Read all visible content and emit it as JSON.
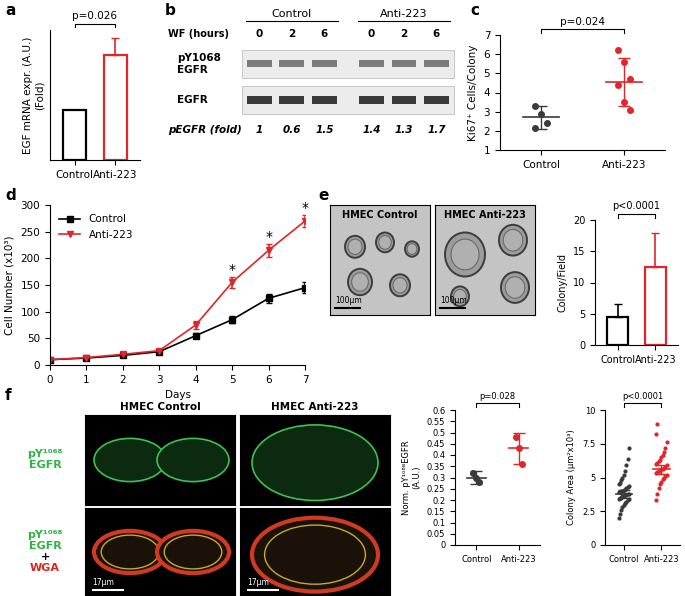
{
  "chart_data": [
    {
      "panel_label": "a",
      "type": "bar",
      "categories": [
        "Control",
        "Anti-223"
      ],
      "values": [
        1,
        2.1
      ],
      "errors": [
        null,
        0.35
      ],
      "colors": [
        "#000000",
        "#e0262b"
      ],
      "ylabel": "EGF mRNA expr. (A.U.)\n(Fold)",
      "ylim": [
        0,
        2.6
      ],
      "tick_labels": "x",
      "annotations": [
        {
          "text": "p=0.026",
          "between": [
            "Control",
            "Anti-223"
          ]
        }
      ]
    },
    {
      "panel_label": "c",
      "type": "dot",
      "categories": [
        "Control",
        "Anti-223"
      ],
      "points": [
        [
          3.3,
          2.9,
          2.4,
          2.15
        ],
        [
          6.2,
          5.6,
          4.7,
          4.4,
          3.5,
          3.1
        ]
      ],
      "means": [
        2.7,
        4.55
      ],
      "errors": [
        0.6,
        1.25
      ],
      "colors": [
        "#3a3a3a",
        "#e0262b"
      ],
      "ylabel": "Ki67⁺ Cells/Colony",
      "ylim": [
        1,
        7
      ],
      "yticks": [
        1,
        2,
        3,
        4,
        5,
        6,
        7
      ],
      "annotations": [
        {
          "text": "p=0.024",
          "between": [
            "Control",
            "Anti-223"
          ]
        }
      ]
    },
    {
      "panel_label": "d",
      "type": "line",
      "x": [
        0,
        1,
        2,
        3,
        4,
        5,
        6,
        7
      ],
      "series": [
        {
          "name": "Control",
          "color": "#000000",
          "marker": "square",
          "values": [
            10,
            13,
            18,
            25,
            55,
            85,
            125,
            145
          ],
          "errors": [
            1,
            1,
            2,
            2,
            5,
            6,
            8,
            10
          ]
        },
        {
          "name": "Anti-223",
          "color": "#e0262b",
          "marker": "triangle_down",
          "values": [
            10,
            14,
            20,
            27,
            75,
            155,
            215,
            270
          ],
          "errors": [
            1,
            1,
            2,
            2,
            8,
            10,
            12,
            12
          ]
        }
      ],
      "xlabel": "Days",
      "ylabel": "Cell Number (x10³)",
      "xlim": [
        0,
        7
      ],
      "xticks": [
        0,
        1,
        2,
        3,
        4,
        5,
        6,
        7
      ],
      "ylim": [
        0,
        300
      ],
      "yticks": [
        0,
        50,
        100,
        150,
        200,
        250,
        300
      ],
      "legend": "upper left",
      "annotations": [
        {
          "text": "*",
          "x": 5
        },
        {
          "text": "*",
          "x": 6
        },
        {
          "text": "*",
          "x": 7
        }
      ]
    },
    {
      "panel_label": "e",
      "type": "bar",
      "categories": [
        "Control",
        "Anti-223"
      ],
      "values": [
        4.5,
        12.5
      ],
      "errors": [
        2,
        5.5
      ],
      "colors": [
        "#000000",
        "#e0262b"
      ],
      "ylabel": "Colony/Field",
      "ylim": [
        0,
        20
      ],
      "yticks": [
        0,
        5,
        10,
        15,
        20
      ],
      "annotations": [
        {
          "text": "p<0.0001",
          "between": [
            "Control",
            "Anti-223"
          ]
        }
      ]
    },
    {
      "panel_label": "f",
      "type": "dot",
      "categories": [
        "Control",
        "Anti-223"
      ],
      "points": [
        [
          0.32,
          0.3,
          0.28
        ],
        [
          0.48,
          0.43,
          0.36
        ]
      ],
      "means": [
        0.3,
        0.43
      ],
      "errors": [
        0.03,
        0.07
      ],
      "colors": [
        "#3a3a3a",
        "#e0262b"
      ],
      "ylabel": "Norm. pY¹⁰⁶⁸EGFR\n(A.U.)",
      "ylim": [
        0,
        0.6
      ],
      "yticks": [
        0,
        0.05,
        0.1,
        0.15,
        0.2,
        0.25,
        0.3,
        0.35,
        0.4,
        0.45,
        0.5,
        0.55,
        0.6
      ],
      "annotations": [
        {
          "text": "p=0.028",
          "between": [
            "Control",
            "Anti-223"
          ]
        }
      ]
    },
    {
      "type": "dot",
      "categories": [
        "Control",
        "Anti-223"
      ],
      "points": [
        [
          2.0,
          2.3,
          2.6,
          2.8,
          3.0,
          3.1,
          3.2,
          3.3,
          3.4,
          3.4,
          3.5,
          3.5,
          3.6,
          3.6,
          3.7,
          3.7,
          3.8,
          3.8,
          3.9,
          3.9,
          4.0,
          4.0,
          4.1,
          4.1,
          4.2,
          4.3,
          4.4,
          4.5,
          4.6,
          4.8,
          5.0,
          5.2,
          5.5,
          5.9,
          6.4,
          7.2
        ],
        [
          3.3,
          3.8,
          4.2,
          4.5,
          4.7,
          4.9,
          5.0,
          5.1,
          5.2,
          5.3,
          5.4,
          5.5,
          5.5,
          5.6,
          5.6,
          5.7,
          5.8,
          5.9,
          6.0,
          6.1,
          6.2,
          6.3,
          6.5,
          6.7,
          6.9,
          7.2,
          7.6,
          8.2,
          9.0
        ]
      ],
      "means": [
        3.8,
        5.6
      ],
      "errors": [
        0.3,
        0.35
      ],
      "colors": [
        "#3a3a3a",
        "#e0262b"
      ],
      "ylabel": "Colony Area (μm²x10³)",
      "ylim": [
        0,
        10
      ],
      "yticks": [
        0,
        2.5,
        5,
        7.5,
        10
      ],
      "annotations": [
        {
          "text": "p<0.0001",
          "between": [
            "Control",
            "Anti-223"
          ]
        }
      ]
    }
  ],
  "blot": {
    "panel_label": "b",
    "groups": [
      {
        "label": "Control",
        "lanes": [
          0,
          2,
          6
        ]
      },
      {
        "label": "Anti-223",
        "lanes": [
          0,
          2,
          6
        ]
      }
    ],
    "lane_header": "WF (hours)",
    "rows": [
      "pY1068\nEGFR",
      "EGFR"
    ],
    "quant_label": "pEGFR (fold)",
    "quant_values": [
      1,
      0.6,
      1.5,
      1.4,
      1.3,
      1.7
    ]
  },
  "images": [
    {
      "panel_label": "e",
      "titles": [
        "HMEC Control",
        "HMEC Anti-223"
      ],
      "scale_bar": "100μm"
    },
    {
      "panel_label": "f",
      "titles": [
        "HMEC Control",
        "HMEC Anti-223"
      ],
      "row_labels": [
        [
          {
            "text": "pY¹⁰⁶⁸\nEGFR",
            "color": "#2fb344"
          }
        ],
        [
          {
            "text": "pY¹⁰⁶⁸\nEGFR",
            "color": "#2fb344"
          },
          {
            "text": "+",
            "color": "#000000"
          },
          {
            "text": "WGA",
            "color": "#d6281e"
          }
        ]
      ],
      "scale_bar": "17μm"
    }
  ]
}
